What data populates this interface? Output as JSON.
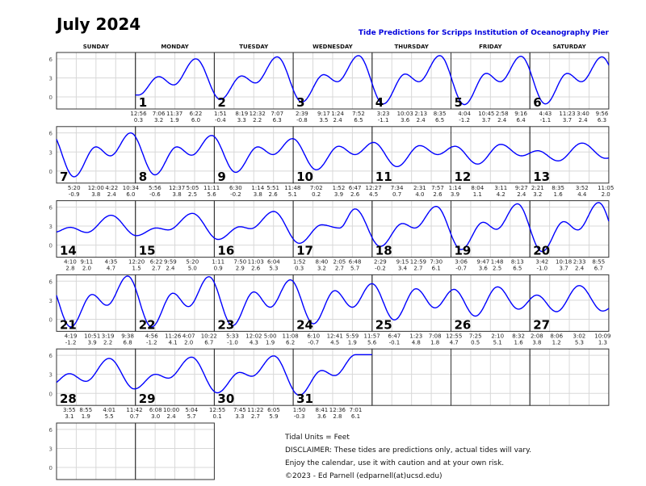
{
  "title": "July 2024",
  "subtitle": "Tide Predictions for Scripps Institution of Oceanography Pier",
  "footer": [
    "Tidal Units = Feet",
    "DISCLAIMER: These tides are predictions only, actual tides will vary.",
    "Enjoy the calendar, use it with caution and at your own risk.",
    "©2023 - Ed Parnell (edparnell(at)ucsd.edu)"
  ],
  "chart_data": {
    "type": "line",
    "title": "July 2024",
    "subtitle": "Tide Predictions for Scripps Institution of Oceanography Pier",
    "unit": "Feet",
    "weekdays": [
      "SUNDAY",
      "MONDAY",
      "TUESDAY",
      "WEDNESDAY",
      "THURSDAY",
      "FRIDAY",
      "SATURDAY"
    ],
    "first_weekday_index": 1,
    "y_ticks": [
      0,
      3,
      6
    ],
    "ylim": [
      -1.9,
      7
    ],
    "grid": true,
    "line_color": "#0000ff",
    "days": [
      {
        "day": 1,
        "tides": [
          [
            "12:56",
            0.3
          ],
          [
            "7:06",
            3.2
          ],
          [
            "11:37",
            1.9
          ],
          [
            "6:22",
            6.0
          ]
        ]
      },
      {
        "day": 2,
        "tides": [
          [
            "1:51",
            -0.4
          ],
          [
            "8:19",
            3.3
          ],
          [
            "12:32",
            2.2
          ],
          [
            "7:07",
            6.3
          ]
        ]
      },
      {
        "day": 3,
        "tides": [
          [
            "2:39",
            -0.8
          ],
          [
            "9:17",
            3.5
          ],
          [
            "1:24",
            2.4
          ],
          [
            "7:52",
            6.5
          ]
        ]
      },
      {
        "day": 4,
        "tides": [
          [
            "3:23",
            -1.1
          ],
          [
            "10:03",
            3.6
          ],
          [
            "2:13",
            2.4
          ],
          [
            "8:35",
            6.5
          ]
        ]
      },
      {
        "day": 5,
        "tides": [
          [
            "4:04",
            -1.2
          ],
          [
            "10:45",
            3.7
          ],
          [
            "2:58",
            2.4
          ],
          [
            "9:16",
            6.4
          ]
        ]
      },
      {
        "day": 6,
        "tides": [
          [
            "4:43",
            -1.1
          ],
          [
            "11:23",
            3.7
          ],
          [
            "3:40",
            2.4
          ],
          [
            "9:56",
            6.3
          ]
        ]
      },
      {
        "day": 7,
        "tides": [
          [
            "5:20",
            -0.9
          ],
          [
            "12:00",
            3.8
          ],
          [
            "4:22",
            2.4
          ],
          [
            "10:34",
            6.0
          ]
        ]
      },
      {
        "day": 8,
        "tides": [
          [
            "5:56",
            -0.6
          ],
          [
            "12:37",
            3.8
          ],
          [
            "5:05",
            2.5
          ],
          [
            "11:11",
            5.6
          ]
        ]
      },
      {
        "day": 9,
        "tides": [
          [
            "6:30",
            -0.2
          ],
          [
            "1:14",
            3.8
          ],
          [
            "5:51",
            2.6
          ],
          [
            "11:48",
            5.1
          ]
        ]
      },
      {
        "day": 10,
        "tides": [
          [
            "7:02",
            0.2
          ],
          [
            "1:52",
            3.9
          ],
          [
            "6:47",
            2.6
          ]
        ]
      },
      {
        "day": 11,
        "tides": [
          [
            "12:27",
            4.5
          ],
          [
            "7:34",
            0.7
          ],
          [
            "2:31",
            4.0
          ],
          [
            "7:57",
            2.6
          ]
        ]
      },
      {
        "day": 12,
        "tides": [
          [
            "1:14",
            3.9
          ],
          [
            "8:04",
            1.1
          ],
          [
            "3:11",
            4.2
          ],
          [
            "9:27",
            2.4
          ]
        ]
      },
      {
        "day": 13,
        "tides": [
          [
            "2:21",
            3.2
          ],
          [
            "8:35",
            1.6
          ],
          [
            "3:52",
            4.4
          ],
          [
            "11:05",
            2.0
          ]
        ]
      },
      {
        "day": 14,
        "tides": [
          [
            "4:10",
            2.8
          ],
          [
            "9:11",
            2.0
          ],
          [
            "4:35",
            4.7
          ]
        ]
      },
      {
        "day": 15,
        "tides": [
          [
            "12:20",
            1.5
          ],
          [
            "6:22",
            2.7
          ],
          [
            "9:59",
            2.4
          ],
          [
            "5:20",
            5.0
          ]
        ]
      },
      {
        "day": 16,
        "tides": [
          [
            "1:11",
            0.9
          ],
          [
            "7:50",
            2.9
          ],
          [
            "11:03",
            2.6
          ],
          [
            "6:04",
            5.3
          ]
        ]
      },
      {
        "day": 17,
        "tides": [
          [
            "1:52",
            0.3
          ],
          [
            "8:40",
            3.2
          ],
          [
            "2:05",
            2.7
          ],
          [
            "6:48",
            5.7
          ]
        ]
      },
      {
        "day": 18,
        "tides": [
          [
            "2:29",
            -0.2
          ],
          [
            "9:15",
            3.4
          ],
          [
            "12:59",
            2.7
          ],
          [
            "7:30",
            6.1
          ]
        ]
      },
      {
        "day": 19,
        "tides": [
          [
            "3:06",
            -0.7
          ],
          [
            "9:47",
            3.6
          ],
          [
            "1:48",
            2.5
          ],
          [
            "8:13",
            6.5
          ]
        ]
      },
      {
        "day": 20,
        "tides": [
          [
            "3:42",
            -1.0
          ],
          [
            "10:18",
            3.7
          ],
          [
            "2:33",
            2.4
          ],
          [
            "8:55",
            6.7
          ]
        ]
      },
      {
        "day": 21,
        "tides": [
          [
            "4:19",
            -1.2
          ],
          [
            "10:51",
            3.9
          ],
          [
            "3:19",
            2.2
          ],
          [
            "9:38",
            6.8
          ]
        ]
      },
      {
        "day": 22,
        "tides": [
          [
            "4:56",
            -1.2
          ],
          [
            "11:26",
            4.1
          ],
          [
            "4:07",
            2.0
          ],
          [
            "10:22",
            6.7
          ]
        ]
      },
      {
        "day": 23,
        "tides": [
          [
            "5:33",
            -1.0
          ],
          [
            "12:02",
            4.3
          ],
          [
            "5:00",
            1.9
          ],
          [
            "11:08",
            6.2
          ]
        ]
      },
      {
        "day": 24,
        "tides": [
          [
            "6:10",
            -0.7
          ],
          [
            "12:41",
            4.5
          ],
          [
            "5:59",
            1.9
          ],
          [
            "11:57",
            5.6
          ]
        ]
      },
      {
        "day": 25,
        "tides": [
          [
            "6:47",
            -0.1
          ],
          [
            "1:23",
            4.8
          ],
          [
            "7:08",
            1.8
          ]
        ]
      },
      {
        "day": 26,
        "tides": [
          [
            "12:55",
            4.7
          ],
          [
            "7:25",
            0.5
          ],
          [
            "2:10",
            5.1
          ],
          [
            "8:32",
            1.6
          ]
        ]
      },
      {
        "day": 27,
        "tides": [
          [
            "2:08",
            3.8
          ],
          [
            "8:06",
            1.2
          ],
          [
            "3:02",
            5.3
          ],
          [
            "10:09",
            1.3
          ]
        ]
      },
      {
        "day": 28,
        "tides": [
          [
            "3:55",
            3.1
          ],
          [
            "8:55",
            1.9
          ],
          [
            "4:01",
            5.5
          ],
          [
            "11:42",
            0.7
          ]
        ]
      },
      {
        "day": 29,
        "tides": [
          [
            "6:08",
            3.0
          ],
          [
            "10:00",
            2.4
          ],
          [
            "5:04",
            5.7
          ]
        ]
      },
      {
        "day": 30,
        "tides": [
          [
            "12:55",
            0.1
          ],
          [
            "7:45",
            3.3
          ],
          [
            "11:22",
            2.7
          ],
          [
            "6:05",
            5.9
          ]
        ]
      },
      {
        "day": 31,
        "tides": [
          [
            "1:50",
            -0.3
          ],
          [
            "8:41",
            3.6
          ],
          [
            "12:36",
            2.8
          ],
          [
            "7:01",
            6.1
          ]
        ]
      }
    ]
  }
}
